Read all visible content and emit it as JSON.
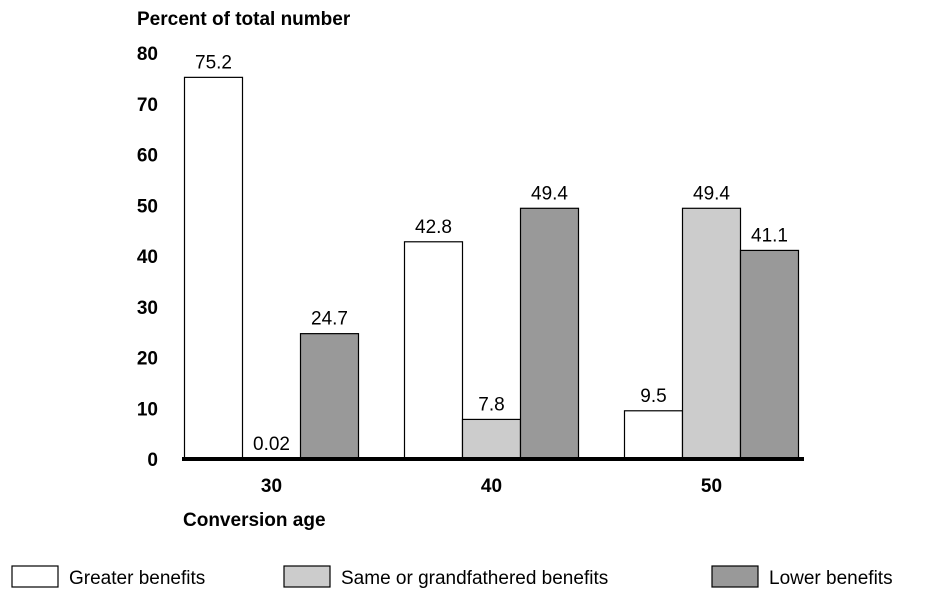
{
  "chart_data": {
    "type": "bar",
    "ylabel": "Percent of total number",
    "xlabel": "Conversion age",
    "categories": [
      "30",
      "40",
      "50"
    ],
    "yticks": [
      "0",
      "10",
      "20",
      "30",
      "40",
      "50",
      "60",
      "70",
      "80"
    ],
    "ylim": [
      0,
      80
    ],
    "grid": false,
    "legend_position": "bottom",
    "series": [
      {
        "name": "Greater benefits",
        "color": "#ffffff",
        "values": [
          75.2,
          42.8,
          9.5
        ],
        "labels": [
          "75.2",
          "42.8",
          "9.5"
        ]
      },
      {
        "name": "Same or grandfathered benefits",
        "color": "#cccccc",
        "values": [
          0.02,
          7.8,
          49.4
        ],
        "labels": [
          "0.02",
          "7.8",
          "49.4"
        ]
      },
      {
        "name": "Lower benefits",
        "color": "#999999",
        "values": [
          24.7,
          49.4,
          41.1
        ],
        "labels": [
          "24.7",
          "49.4",
          "41.1"
        ]
      }
    ]
  }
}
